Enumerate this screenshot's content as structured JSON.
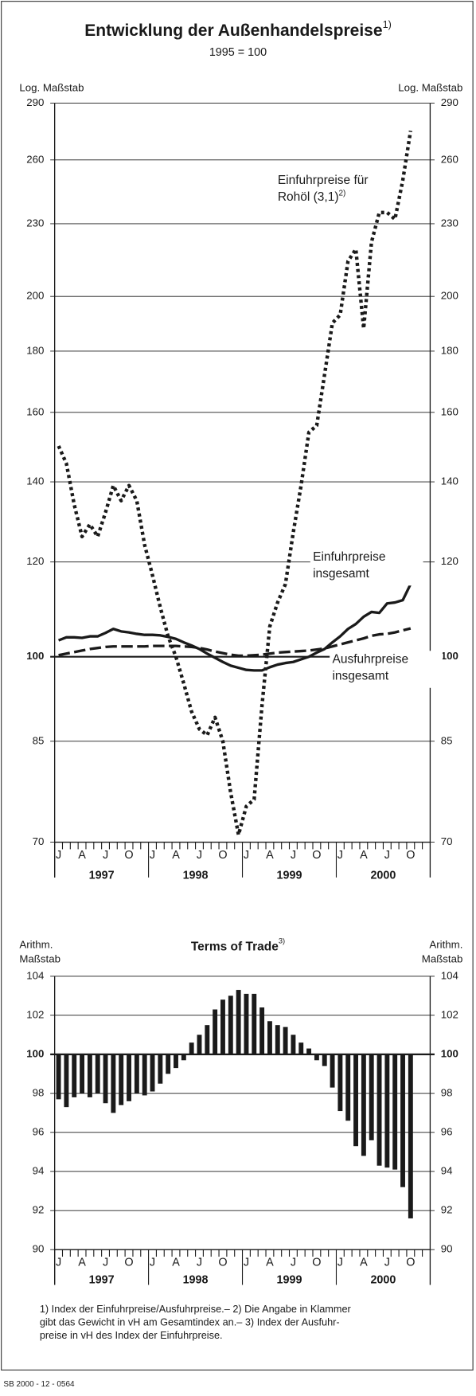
{
  "chart_data": [
    {
      "type": "line",
      "title": "Entwicklung der Außenhandelspreise",
      "title_note": "1)",
      "subtitle": "1995 = 100",
      "y_axis_label": "Log. Maßstab",
      "log_scale": true,
      "grid": true,
      "baseline": 100,
      "ylim": [
        70,
        290
      ],
      "yticks": [
        70,
        85,
        100,
        120,
        140,
        160,
        180,
        200,
        230,
        260,
        290
      ],
      "categories": [
        "J",
        null,
        null,
        "A",
        null,
        null,
        "J",
        null,
        null,
        "O",
        null,
        null,
        "J",
        null,
        null,
        "A",
        null,
        null,
        "J",
        null,
        null,
        "O",
        null,
        null,
        "J",
        null,
        null,
        "A",
        null,
        null,
        "J",
        null,
        null,
        "O",
        null,
        null,
        "J",
        null,
        null,
        "A",
        null,
        null,
        "J",
        null,
        null,
        "O",
        null,
        null
      ],
      "year_labels": [
        "1997",
        "1998",
        "1999",
        "2000"
      ],
      "series": [
        {
          "label": [
            "Einfuhrpreise für",
            "Rohöl (3,1)"
          ],
          "label_note": "2)",
          "style": "dotted",
          "color": "#1a1a1a",
          "values": [
            150,
            145,
            134,
            126,
            129,
            126,
            132,
            139,
            135,
            139,
            135,
            124,
            117,
            110,
            104,
            100,
            95,
            90,
            87,
            86,
            89,
            85,
            77,
            71,
            75,
            76,
            91,
            106,
            111,
            115,
            127,
            139,
            154,
            156,
            172,
            190,
            193,
            214,
            219,
            188,
            222,
            235,
            235,
            232,
            250,
            275,
            null,
            null
          ]
        },
        {
          "label": [
            "Einfuhrpreise",
            "insgesamt"
          ],
          "style": "solid",
          "color": "#1a1a1a",
          "values": [
            103.2,
            103.8,
            103.8,
            103.7,
            104.0,
            104.0,
            104.7,
            105.5,
            105.0,
            104.8,
            104.5,
            104.3,
            104.3,
            104.2,
            103.9,
            103.5,
            102.8,
            102.2,
            101.5,
            100.6,
            99.8,
            99.0,
            98.3,
            97.9,
            97.5,
            97.4,
            97.4,
            98.0,
            98.5,
            98.8,
            99.0,
            99.5,
            100.0,
            100.8,
            101.5,
            102.8,
            104.0,
            105.5,
            106.5,
            108.0,
            109.0,
            108.8,
            110.8,
            111.0,
            111.5,
            115.0,
            null,
            null
          ]
        },
        {
          "label": [
            "Ausfuhrpreise",
            "insgesamt"
          ],
          "style": "dashed",
          "color": "#1a1a1a",
          "values": [
            100.3,
            100.6,
            100.9,
            101.2,
            101.5,
            101.7,
            101.9,
            102.0,
            102.0,
            102.0,
            102.0,
            102.0,
            102.1,
            102.1,
            102.1,
            102.1,
            102.0,
            101.9,
            101.7,
            101.4,
            101.0,
            100.7,
            100.4,
            100.2,
            100.2,
            100.3,
            100.4,
            100.6,
            100.8,
            100.9,
            101.0,
            101.1,
            101.2,
            101.4,
            101.6,
            102.0,
            102.4,
            102.8,
            103.2,
            103.6,
            104.1,
            104.4,
            104.5,
            104.8,
            105.2,
            105.6,
            null,
            null
          ]
        }
      ]
    },
    {
      "type": "bar",
      "title": "Terms of Trade",
      "title_note": "3)",
      "y_axis_label": [
        "Arithm.",
        "Maßstab"
      ],
      "grid": true,
      "baseline": 100,
      "color": "#1a1a1a",
      "ylim": [
        90,
        104
      ],
      "yticks": [
        90,
        92,
        94,
        96,
        98,
        100,
        102,
        104
      ],
      "categories": [
        "J",
        null,
        null,
        "A",
        null,
        null,
        "J",
        null,
        null,
        "O",
        null,
        null,
        "J",
        null,
        null,
        "A",
        null,
        null,
        "J",
        null,
        null,
        "O",
        null,
        null,
        "J",
        null,
        null,
        "A",
        null,
        null,
        "J",
        null,
        null,
        "O",
        null,
        null,
        "J",
        null,
        null,
        "A",
        null,
        null,
        "J",
        null,
        null,
        "O",
        null,
        null
      ],
      "year_labels": [
        "1997",
        "1998",
        "1999",
        "2000"
      ],
      "values": [
        97.7,
        97.3,
        97.8,
        98.0,
        97.8,
        98.0,
        97.5,
        97.0,
        97.4,
        97.6,
        98.0,
        97.9,
        98.1,
        98.5,
        99.0,
        99.3,
        99.7,
        100.6,
        101.0,
        101.5,
        102.3,
        102.8,
        103.0,
        103.3,
        103.1,
        103.1,
        102.4,
        101.7,
        101.5,
        101.4,
        101.0,
        100.6,
        100.3,
        99.7,
        99.4,
        98.3,
        97.1,
        96.6,
        95.3,
        94.8,
        95.6,
        94.3,
        94.2,
        94.1,
        93.2,
        91.6,
        null,
        null
      ]
    }
  ],
  "footnotes": [
    "1) Index der Einfuhrpreise/Ausfuhrpreise.– 2) Die Angabe in Klammer",
    "gibt das Gewicht in vH am Gesamtindex an.– 3) Index der Ausfuhr-",
    "preise in vH des Index der Einfuhrpreise."
  ],
  "source": "SB 2000 - 12 - 0564"
}
